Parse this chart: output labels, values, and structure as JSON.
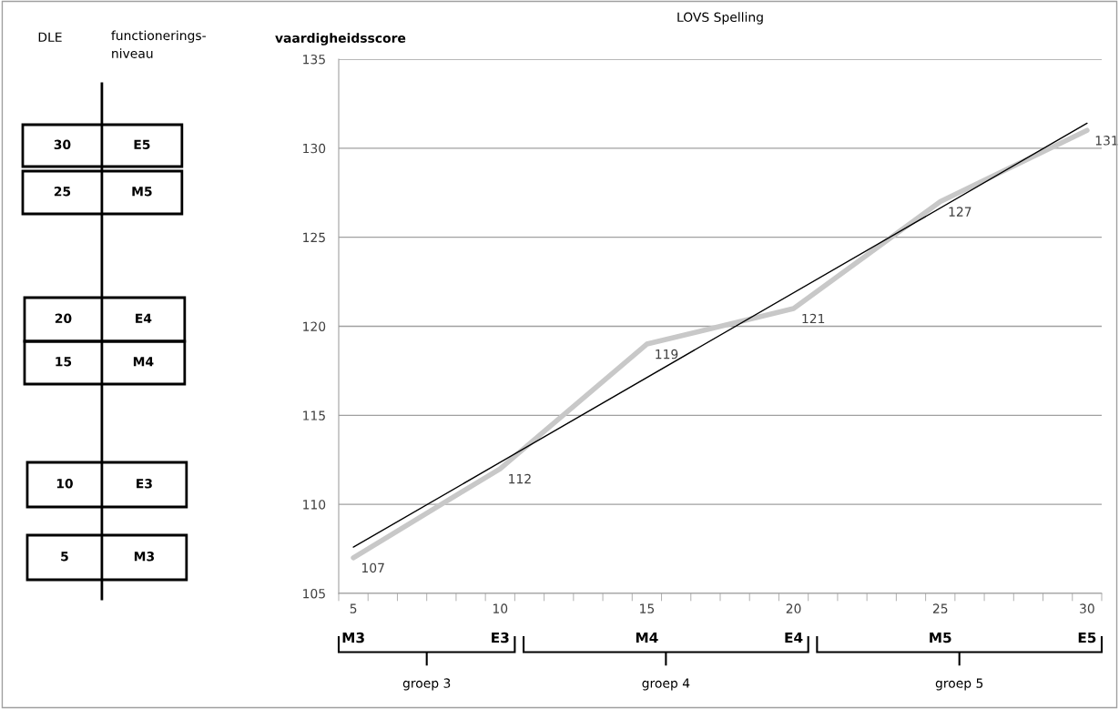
{
  "chart_data": [
    {
      "type": "other",
      "annotations": [
        "DLE",
        "functionerings-\nniveau",
        "30",
        "E5",
        "25",
        "M5",
        "20",
        "E4",
        "15",
        "M4",
        "10",
        "E3",
        "5",
        "M3"
      ]
    },
    {
      "type": "line",
      "title": "LOVS Spelling",
      "ylabel": "vaardigheidsscore",
      "x": [
        5,
        10,
        15,
        20,
        25,
        30
      ],
      "series": [
        {
          "color": "#c8c8c8",
          "values": [
            107,
            112,
            119,
            121,
            127,
            131
          ],
          "value_labels": [
            "107",
            "112",
            "119",
            "121",
            "127",
            "131"
          ]
        },
        {
          "color": "#000000",
          "x": [
            5,
            30
          ],
          "values": [
            107.6,
            131.4
          ]
        }
      ],
      "xlim": [
        4.5,
        30.5
      ],
      "xticks": [
        5,
        10,
        15,
        20,
        25,
        30
      ],
      "ylim": [
        105,
        135
      ],
      "yticks": [
        105,
        110,
        115,
        120,
        125,
        130,
        135
      ],
      "grid": "y",
      "legend": false,
      "marker": "none",
      "line_style": "solid",
      "annotations": [
        "M3",
        "E3",
        "groep 3",
        "M4",
        "E4",
        "groep 4",
        "M5",
        "E5",
        "groep 5"
      ]
    }
  ]
}
